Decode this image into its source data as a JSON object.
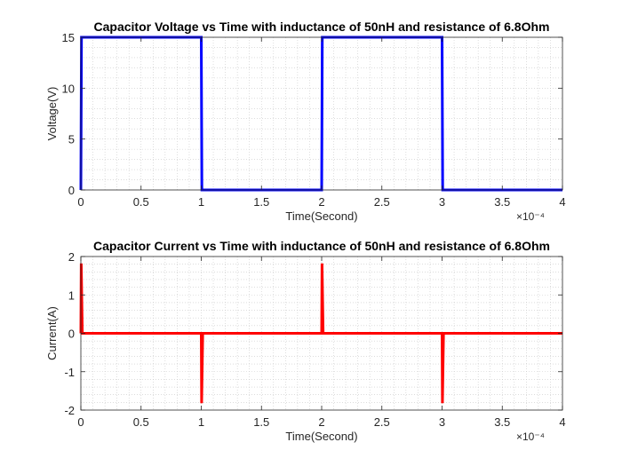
{
  "chart_data": [
    {
      "type": "line",
      "title": "Capacitor Voltage vs Time with inductance of 50nH and resistance of 6.8Ohm",
      "xlabel": "Time(Second)",
      "ylabel": "Voltage(V)",
      "xlim": [
        0,
        0.0004
      ],
      "ylim": [
        0,
        15
      ],
      "x_exponent_label": "×10⁻⁴",
      "xticks": [
        0,
        5e-05,
        0.0001,
        0.00015,
        0.0002,
        0.00025,
        0.0003,
        0.00035,
        0.0004
      ],
      "xtick_labels": [
        "0",
        "0.5",
        "1",
        "1.5",
        "2",
        "2.5",
        "3",
        "3.5",
        "4"
      ],
      "yticks": [
        0,
        5,
        10,
        15
      ],
      "ytick_labels": [
        "0",
        "5",
        "10",
        "15"
      ],
      "grid": "minor-dotted",
      "series": [
        {
          "color": "#0000ff",
          "x": [
            0,
            5e-07,
            0.0001,
            0.0001005,
            0.0002,
            0.0002005,
            0.0003,
            0.0003005,
            0.0004
          ],
          "y": [
            0,
            15,
            15,
            0,
            0,
            15,
            15,
            0,
            0
          ]
        }
      ]
    },
    {
      "type": "line",
      "title": "Capacitor Current vs Time with inductance of 50nH and resistance of 6.8Ohm",
      "xlabel": "Time(Second)",
      "ylabel": "Current(A)",
      "xlim": [
        0,
        0.0004
      ],
      "ylim": [
        -2,
        2
      ],
      "x_exponent_label": "×10⁻⁴",
      "xticks": [
        0,
        5e-05,
        0.0001,
        0.00015,
        0.0002,
        0.00025,
        0.0003,
        0.00035,
        0.0004
      ],
      "xtick_labels": [
        "0",
        "0.5",
        "1",
        "1.5",
        "2",
        "2.5",
        "3",
        "3.5",
        "4"
      ],
      "yticks": [
        -2,
        -1,
        0,
        1,
        2
      ],
      "ytick_labels": [
        "-2",
        "-1",
        "0",
        "1",
        "2"
      ],
      "grid": "minor-dotted",
      "series": [
        {
          "color": "#ff0000",
          "x": [
            0,
            3e-07,
            1.2e-06,
            0.0001,
            0.0001003,
            0.0001012,
            0.0002,
            0.0002003,
            0.0002012,
            0.0003,
            0.0003003,
            0.0003012,
            0.0004
          ],
          "y": [
            0,
            1.82,
            0,
            0,
            -1.82,
            0,
            0,
            1.82,
            0,
            0,
            -1.82,
            0,
            0
          ]
        }
      ]
    }
  ]
}
